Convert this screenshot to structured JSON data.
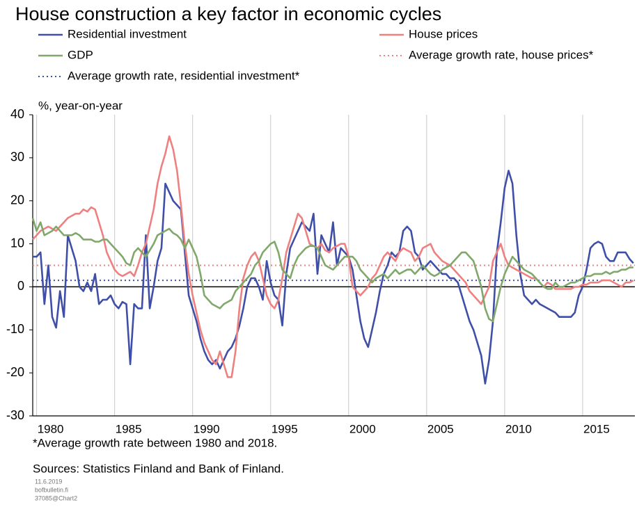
{
  "chart_data": {
    "type": "line",
    "title": "House construction a key factor in economic cycles",
    "y_label": "%, year-on-year",
    "footnote": "*Average growth rate between 1980 and 2018.",
    "source": "Sources: Statistics Finland and Bank of Finland.",
    "meta": [
      "11.6.2019",
      "bofbulletin.fi",
      "37085@Chart2"
    ],
    "xlim": [
      1979.75,
      2018.35
    ],
    "ylim": [
      -30,
      40
    ],
    "xticks": [
      1980,
      1985,
      1990,
      1995,
      2000,
      2005,
      2010,
      2015
    ],
    "yticks": [
      -30,
      -20,
      -10,
      0,
      10,
      20,
      30,
      40
    ],
    "grid": "x",
    "x": [
      1979.75,
      1980,
      1980.25,
      1980.5,
      1980.75,
      1981,
      1981.25,
      1981.5,
      1981.75,
      1982,
      1982.25,
      1982.5,
      1982.75,
      1983,
      1983.25,
      1983.5,
      1983.75,
      1984,
      1984.25,
      1984.5,
      1984.75,
      1985,
      1985.25,
      1985.5,
      1985.75,
      1986,
      1986.25,
      1986.5,
      1986.75,
      1987,
      1987.25,
      1987.5,
      1987.75,
      1988,
      1988.25,
      1988.5,
      1988.75,
      1989,
      1989.25,
      1989.5,
      1989.75,
      1990,
      1990.25,
      1990.5,
      1990.75,
      1991,
      1991.25,
      1991.5,
      1991.75,
      1992,
      1992.25,
      1992.5,
      1992.75,
      1993,
      1993.25,
      1993.5,
      1993.75,
      1994,
      1994.25,
      1994.5,
      1994.75,
      1995,
      1995.25,
      1995.5,
      1995.75,
      1996,
      1996.25,
      1996.5,
      1996.75,
      1997,
      1997.25,
      1997.5,
      1997.75,
      1998,
      1998.25,
      1998.5,
      1998.75,
      1999,
      1999.25,
      1999.5,
      1999.75,
      2000,
      2000.25,
      2000.5,
      2000.75,
      2001,
      2001.25,
      2001.5,
      2001.75,
      2002,
      2002.25,
      2002.5,
      2002.75,
      2003,
      2003.25,
      2003.5,
      2003.75,
      2004,
      2004.25,
      2004.5,
      2004.75,
      2005,
      2005.25,
      2005.5,
      2005.75,
      2006,
      2006.25,
      2006.5,
      2006.75,
      2007,
      2007.25,
      2007.5,
      2007.75,
      2008,
      2008.25,
      2008.5,
      2008.75,
      2009,
      2009.25,
      2009.5,
      2009.75,
      2010,
      2010.25,
      2010.5,
      2010.75,
      2011,
      2011.25,
      2011.5,
      2011.75,
      2012,
      2012.25,
      2012.5,
      2012.75,
      2013,
      2013.25,
      2013.5,
      2013.75,
      2014,
      2014.25,
      2014.5,
      2014.75,
      2015,
      2015.25,
      2015.5,
      2015.75,
      2016,
      2016.25,
      2016.5,
      2016.75,
      2017,
      2017.25,
      2017.5,
      2017.75,
      2018,
      2018.25
    ],
    "series": [
      {
        "name": "Residential investment",
        "color": "#3f4fa8",
        "values": [
          7,
          7,
          8,
          -4,
          5,
          -7,
          -9.5,
          -1,
          -7,
          12,
          9,
          6,
          0,
          -1,
          1,
          -1,
          3,
          -4,
          -3,
          -3,
          -2,
          -4,
          -5,
          -3.5,
          -4,
          -18,
          -4,
          -5,
          -5,
          12,
          -5,
          0,
          6,
          9,
          24,
          22,
          20,
          19,
          18,
          8,
          -2,
          -5,
          -8,
          -12,
          -15,
          -17,
          -18,
          -17,
          -19,
          -17,
          -15,
          -14,
          -12,
          -9,
          -5,
          0,
          2,
          2,
          0,
          -3,
          6,
          1,
          -2,
          -3,
          -9,
          3,
          9,
          11,
          13,
          15,
          14,
          13,
          17,
          3,
          12,
          10,
          8,
          15,
          5,
          9,
          8,
          7,
          4,
          -2,
          -8,
          -12,
          -14,
          -10,
          -6,
          -1,
          3,
          5,
          8,
          7,
          8,
          13,
          14,
          13,
          8,
          7,
          4,
          5,
          6,
          5,
          4,
          3,
          3,
          2,
          2,
          1,
          -2,
          -5,
          -8,
          -10,
          -13,
          -16,
          -22.5,
          -17,
          -8,
          8,
          15,
          23,
          27,
          24,
          12,
          3,
          -2,
          -3,
          -4,
          -3,
          -4,
          -4.5,
          -5,
          -5.5,
          -6,
          -7,
          -7,
          -7,
          -7,
          -6,
          -2,
          0,
          4,
          9,
          10,
          10.5,
          10,
          7,
          6,
          6,
          8,
          8,
          8,
          6.5,
          5.5
        ]
      },
      {
        "name": "House prices",
        "color": "#ef8080",
        "values": [
          11,
          12,
          13,
          13.5,
          14,
          13.5,
          13,
          14,
          15,
          16,
          16.5,
          17,
          17,
          18,
          17.5,
          18.5,
          18,
          15,
          12,
          8,
          6,
          4,
          3,
          2.5,
          3,
          3.5,
          2.5,
          5,
          8,
          10,
          14,
          18,
          24,
          28,
          31,
          35,
          32,
          27,
          19,
          10,
          3,
          -2,
          -6,
          -10,
          -13,
          -15,
          -17,
          -18,
          -15,
          -18,
          -21,
          -21,
          -15,
          -5,
          2,
          5,
          7,
          8,
          6,
          2,
          -2,
          -4,
          -5,
          -3,
          2,
          8,
          11,
          14,
          17,
          16,
          13,
          10,
          9.5,
          9,
          10,
          8.5,
          8,
          9,
          9.5,
          10,
          10,
          7,
          0,
          -1,
          -2,
          -1,
          0,
          2,
          3,
          5,
          7,
          8,
          7,
          6,
          8,
          9,
          8.5,
          8,
          6,
          7,
          9,
          9.5,
          10,
          8,
          7,
          6,
          5.5,
          5,
          4,
          3,
          2,
          1,
          -1,
          -2,
          -3,
          -4,
          -2,
          0,
          6,
          8,
          10,
          7,
          5,
          4.5,
          4,
          3.5,
          3,
          2.5,
          2,
          2,
          1,
          0,
          1,
          0.5,
          -0.5,
          -0.5,
          -0.5,
          -0.5,
          -0.5,
          0,
          0,
          0.5,
          0.5,
          1,
          1,
          1,
          1.5,
          1.5,
          1.5,
          1,
          0.5,
          0,
          1,
          1,
          1.5
        ]
      },
      {
        "name": "GDP",
        "color": "#7fa86a",
        "values": [
          16,
          13,
          15,
          12,
          12.5,
          13,
          14,
          13,
          12,
          12,
          12,
          12.5,
          12,
          11,
          11,
          11,
          10.5,
          10.5,
          11,
          11,
          10,
          9,
          8,
          7,
          5.5,
          5,
          8,
          9,
          8,
          7,
          8.5,
          10,
          12,
          12.5,
          13,
          13.5,
          12.5,
          12,
          11,
          9,
          11,
          9,
          7,
          3,
          -2,
          -3,
          -4,
          -4.5,
          -5,
          -4,
          -3.5,
          -3,
          -1,
          0,
          1,
          2,
          3,
          5,
          6,
          8,
          9,
          10,
          10.5,
          8,
          4,
          3,
          2,
          5,
          7,
          8,
          9,
          9.5,
          9.5,
          9,
          7,
          5,
          4.5,
          4,
          5,
          6,
          7,
          7,
          7,
          6,
          4,
          3,
          2,
          1,
          2,
          2.5,
          3,
          2,
          3,
          4,
          3,
          3.5,
          4,
          4,
          3,
          4,
          5,
          4,
          3,
          2.5,
          3,
          4,
          4.5,
          5,
          6,
          7,
          8,
          8,
          7,
          6,
          3,
          0,
          -5,
          -7.5,
          -8,
          -4,
          0,
          3,
          5,
          7,
          6,
          5,
          4,
          3.5,
          3,
          2,
          1,
          0,
          -0.5,
          -0.5,
          1,
          0,
          0,
          0.5,
          1,
          1,
          1.5,
          2,
          2.5,
          2.5,
          3,
          3,
          3,
          3.5,
          3,
          3.5,
          3.5,
          4,
          4,
          4.5,
          4.5
        ]
      }
    ],
    "reference_lines": [
      {
        "name": "Average growth rate, house prices*",
        "color": "#ef8080",
        "value": 5
      },
      {
        "name": "Average growth rate, residential investment*",
        "color": "#3f4fa8",
        "value": 1.5
      }
    ]
  }
}
